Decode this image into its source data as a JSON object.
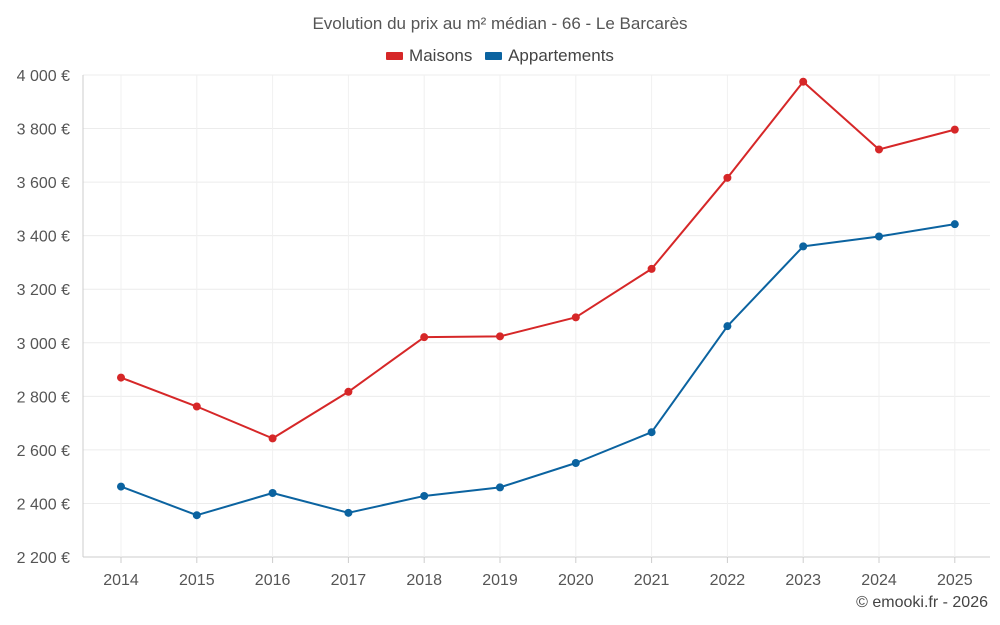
{
  "chart_data": {
    "type": "line",
    "title": "Evolution du prix au m² médian - 66 - Le Barcarès",
    "categories": [
      "2014",
      "2015",
      "2016",
      "2017",
      "2018",
      "2019",
      "2020",
      "2021",
      "2022",
      "2023",
      "2024",
      "2025"
    ],
    "series": [
      {
        "name": "Maisons",
        "color": "#d62728",
        "values": [
          2870,
          2762,
          2643,
          2817,
          3021,
          3024,
          3095,
          3276,
          3616,
          3975,
          3722,
          3796
        ]
      },
      {
        "name": "Appartements",
        "color": "#0b63a0",
        "values": [
          2463,
          2356,
          2439,
          2365,
          2428,
          2460,
          2551,
          2666,
          3062,
          3360,
          3397,
          3443
        ]
      }
    ],
    "ylim": [
      2200,
      4000
    ],
    "yticks": [
      2200,
      2400,
      2600,
      2800,
      3000,
      3200,
      3400,
      3600,
      3800,
      4000
    ],
    "ytick_labels": [
      "2 200 €",
      "2 400 €",
      "2 600 €",
      "2 800 €",
      "3 000 €",
      "3 200 €",
      "3 400 €",
      "3 600 €",
      "3 800 €",
      "4 000 €"
    ],
    "xlabel": "",
    "ylabel": "",
    "grid": true,
    "legend": "top-center"
  },
  "credit": "© emooki.fr - 2026"
}
